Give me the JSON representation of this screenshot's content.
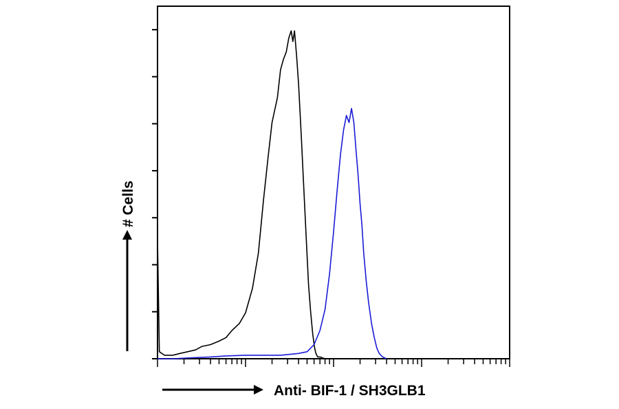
{
  "chart_data": {
    "type": "line",
    "title": "",
    "xlabel": "Anti- BIF-1 / SH3GLB1",
    "ylabel": "# Cells",
    "x_scale": "log",
    "xlim": [
      1,
      10000
    ],
    "ylim": [
      0,
      1
    ],
    "grid": false,
    "legend": "none",
    "series": [
      {
        "color": "#000000",
        "x": [
          1,
          1.05,
          1.2,
          1.5,
          1.8,
          2.2,
          2.7,
          3.2,
          4,
          5,
          6,
          7,
          8.5,
          10,
          12,
          14,
          16,
          18,
          20,
          23,
          25,
          27,
          29,
          31,
          33,
          34.5,
          36,
          38,
          40,
          43,
          46,
          49,
          52,
          55,
          58,
          61,
          63,
          66,
          70,
          74,
          80
        ],
        "y": [
          0.34,
          0.02,
          0.01,
          0.01,
          0.015,
          0.02,
          0.025,
          0.035,
          0.04,
          0.05,
          0.06,
          0.08,
          0.1,
          0.13,
          0.2,
          0.3,
          0.45,
          0.57,
          0.67,
          0.74,
          0.82,
          0.85,
          0.87,
          0.91,
          0.93,
          0.9,
          0.93,
          0.86,
          0.78,
          0.63,
          0.48,
          0.34,
          0.21,
          0.13,
          0.07,
          0.03,
          0.015,
          0.005,
          0.005,
          0.003,
          0
        ]
      },
      {
        "color": "#1a1ad6",
        "x": [
          1,
          1.5,
          2.5,
          4,
          6,
          10,
          15,
          20,
          25,
          30,
          40,
          50,
          60,
          70,
          80,
          90,
          100,
          110,
          120,
          130,
          140,
          150,
          160,
          170,
          180,
          190,
          200,
          210,
          220,
          235,
          250,
          270,
          290,
          310,
          330,
          360,
          400
        ],
        "y": [
          0,
          0,
          0.003,
          0.005,
          0.008,
          0.01,
          0.01,
          0.01,
          0.01,
          0.012,
          0.015,
          0.02,
          0.04,
          0.08,
          0.14,
          0.24,
          0.36,
          0.48,
          0.58,
          0.65,
          0.69,
          0.67,
          0.71,
          0.67,
          0.59,
          0.52,
          0.44,
          0.38,
          0.3,
          0.22,
          0.16,
          0.1,
          0.06,
          0.03,
          0.015,
          0.005,
          0
        ]
      }
    ]
  }
}
